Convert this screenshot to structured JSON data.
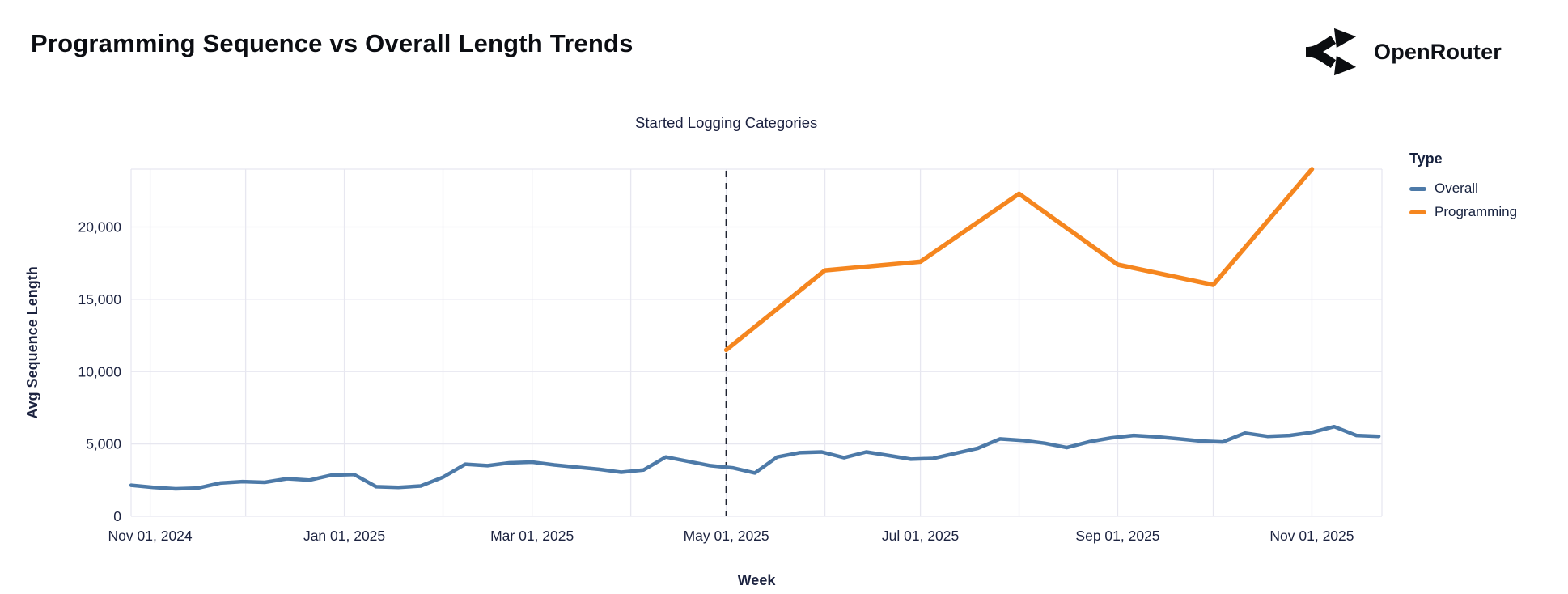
{
  "header": {
    "title": "Programming Sequence vs Overall Length Trends",
    "brand": "OpenRouter"
  },
  "legend": {
    "title": "Type",
    "items": [
      {
        "label": "Overall",
        "color": "#4d7aa8"
      },
      {
        "label": "Programming",
        "color": "#f5861f"
      }
    ]
  },
  "axes": {
    "x_label": "Week",
    "y_label": "Avg Sequence Length"
  },
  "annotation": {
    "label": "Started Logging Categories",
    "x": "2025-05-01"
  },
  "chart_data": {
    "type": "line",
    "title": "Programming Sequence vs Overall Length Trends",
    "xlabel": "Week",
    "ylabel": "Avg Sequence Length",
    "grid": true,
    "legend_position": "right",
    "x_domain": [
      "2024-10-26",
      "2025-11-23"
    ],
    "ylim": [
      0,
      24000
    ],
    "y_ticks": [
      0,
      5000,
      10000,
      15000,
      20000
    ],
    "y_tick_labels": [
      "0",
      "5,000",
      "10,000",
      "15,000",
      "20,000"
    ],
    "x_ticks": [
      "2024-11-01",
      "2025-01-01",
      "2025-03-01",
      "2025-05-01",
      "2025-07-01",
      "2025-09-01",
      "2025-11-01"
    ],
    "x_tick_labels": [
      "Nov 01, 2024",
      "Jan 01, 2025",
      "Mar 01, 2025",
      "May 01, 2025",
      "Jul 01, 2025",
      "Sep 01, 2025",
      "Nov 01, 2025"
    ],
    "month_gridlines": [
      "2024-11-01",
      "2024-12-01",
      "2025-01-01",
      "2025-02-01",
      "2025-03-01",
      "2025-04-01",
      "2025-05-01",
      "2025-06-01",
      "2025-07-01",
      "2025-08-01",
      "2025-09-01",
      "2025-10-01",
      "2025-11-01"
    ],
    "annotation": {
      "label": "Started Logging Categories",
      "x": "2025-05-01"
    },
    "series": [
      {
        "name": "Overall",
        "color": "#4d7aa8",
        "x": [
          "2024-10-26",
          "2024-11-02",
          "2024-11-09",
          "2024-11-16",
          "2024-11-23",
          "2024-11-30",
          "2024-12-07",
          "2024-12-14",
          "2024-12-21",
          "2024-12-28",
          "2025-01-04",
          "2025-01-11",
          "2025-01-18",
          "2025-01-25",
          "2025-02-01",
          "2025-02-08",
          "2025-02-15",
          "2025-02-22",
          "2025-03-01",
          "2025-03-08",
          "2025-03-15",
          "2025-03-22",
          "2025-03-29",
          "2025-04-05",
          "2025-04-12",
          "2025-04-19",
          "2025-04-26",
          "2025-05-03",
          "2025-05-10",
          "2025-05-17",
          "2025-05-24",
          "2025-05-31",
          "2025-06-07",
          "2025-06-14",
          "2025-06-21",
          "2025-06-28",
          "2025-07-05",
          "2025-07-12",
          "2025-07-19",
          "2025-07-26",
          "2025-08-02",
          "2025-08-09",
          "2025-08-16",
          "2025-08-23",
          "2025-08-30",
          "2025-09-06",
          "2025-09-13",
          "2025-09-20",
          "2025-09-27",
          "2025-10-04",
          "2025-10-11",
          "2025-10-18",
          "2025-10-25",
          "2025-11-01",
          "2025-11-08",
          "2025-11-15",
          "2025-11-22"
        ],
        "values": [
          2150,
          2000,
          1900,
          1950,
          2300,
          2400,
          2350,
          2600,
          2500,
          2850,
          2900,
          2050,
          2000,
          2100,
          2700,
          3600,
          3500,
          3700,
          3750,
          3550,
          3400,
          3250,
          3050,
          3200,
          4100,
          3800,
          3500,
          3350,
          3000,
          4100,
          4400,
          4450,
          4050,
          4450,
          4200,
          3950,
          4000,
          4350,
          4700,
          5350,
          5250,
          5050,
          4750,
          5150,
          5420,
          5590,
          5500,
          5360,
          5200,
          5140,
          5750,
          5530,
          5590,
          5800,
          6200,
          5590,
          5530
        ]
      },
      {
        "name": "Programming",
        "color": "#f5861f",
        "x": [
          "2025-05-01",
          "2025-06-01",
          "2025-07-01",
          "2025-08-01",
          "2025-09-01",
          "2025-10-01",
          "2025-11-01"
        ],
        "values": [
          11500,
          17000,
          17600,
          22300,
          17400,
          16000,
          24000
        ]
      }
    ]
  }
}
